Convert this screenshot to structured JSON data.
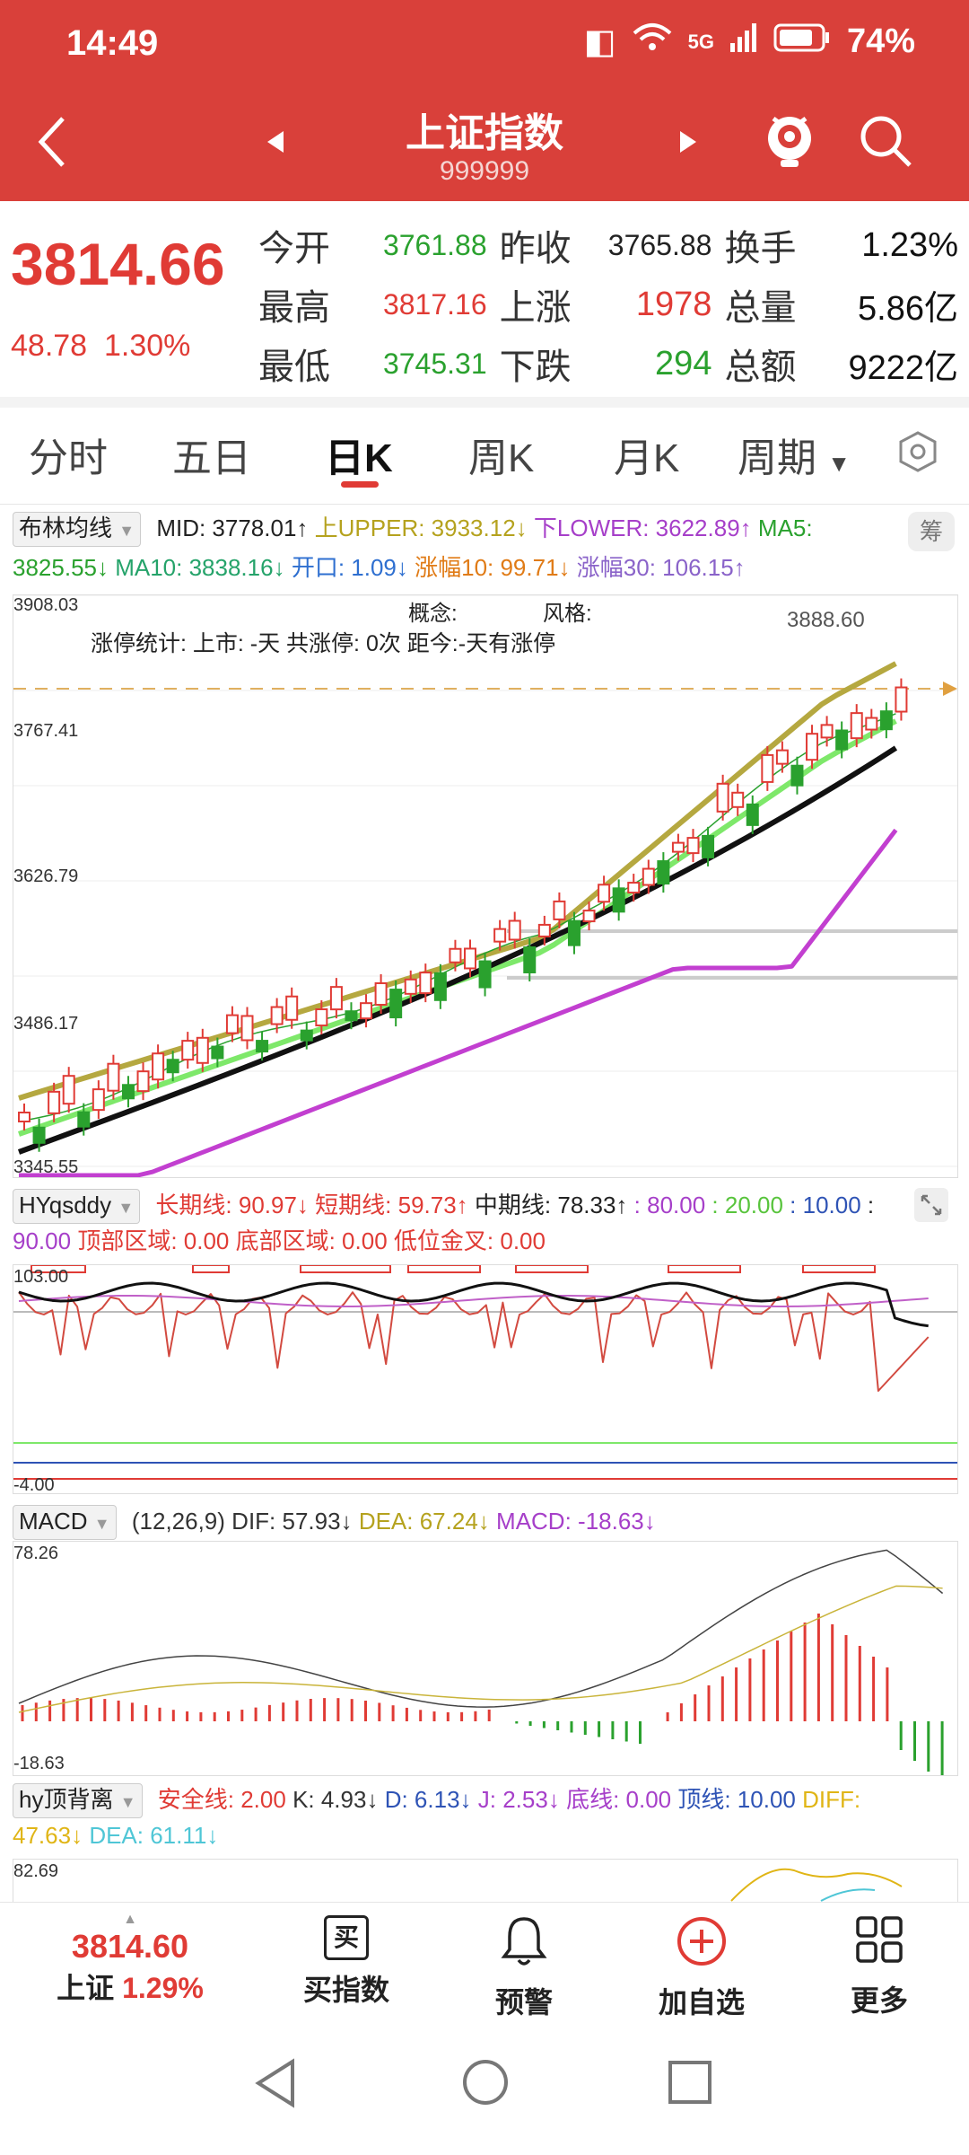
{
  "status_bar": {
    "time": "14:49",
    "network": "5G",
    "battery": "74%"
  },
  "header": {
    "title": "上证指数",
    "code": "999999"
  },
  "quote": {
    "price": "3814.66",
    "change": "48.78",
    "change_pct": "1.30%",
    "rows": [
      {
        "l1": "今开",
        "v1": "3761.88",
        "l2": "昨收",
        "v2": "3765.88",
        "l3": "换手",
        "v3": "1.23%"
      },
      {
        "l1": "最高",
        "v1": "3817.16",
        "l2": "上涨",
        "v2": "1978",
        "l3": "总量",
        "v3": "5.86亿"
      },
      {
        "l1": "最低",
        "v1": "3745.31",
        "l2": "下跌",
        "v2": "294",
        "l3": "总额",
        "v3": "9222亿"
      }
    ]
  },
  "tabs": [
    "分时",
    "五日",
    "日K",
    "周K",
    "月K",
    "周期"
  ],
  "active_tab": "日K",
  "boll": {
    "selector": "布林均线",
    "items": [
      "MID: 3778.01↑",
      "上UPPER: 3933.12↓",
      "下LOWER: 3622.89↑",
      "MA5:"
    ],
    "items2": [
      "3825.55↓",
      "MA10: 3838.16↓",
      "开口: 1.09↓",
      "涨幅10: 99.71↓",
      "涨幅30: 106.15↑"
    ],
    "axis": [
      "3908.03",
      "3767.41",
      "3626.79",
      "3486.17",
      "3345.55"
    ],
    "label_concept": "概念:",
    "label_style": "风格:",
    "limit_stat": "涨停统计: 上市: -天 共涨停: 0次 距今:-天有涨停",
    "high_label": "3888.60",
    "side_btn": "筹"
  },
  "hy": {
    "selector": "HYqsddy",
    "items": [
      "长期线: 90.97↓",
      "短期线: 59.73↑",
      "中期线: 78.33↑",
      ": 80.00",
      ": 20.00",
      ": 10.00",
      ":"
    ],
    "items2": [
      "90.00",
      "顶部区域: 0.00",
      "底部区域: 0.00",
      "低位金叉: 0.00"
    ],
    "axis": [
      "103.00",
      "-4.00"
    ]
  },
  "macd": {
    "selector": "MACD",
    "items": [
      "(12,26,9)",
      "DIF: 57.93↓",
      "DEA: 67.24↓",
      "MACD: -18.63↓"
    ],
    "axis": [
      "78.26",
      "-18.63"
    ]
  },
  "hyd": {
    "selector": "hy顶背离",
    "items": [
      "安全线: 2.00",
      "K: 4.93↓",
      "D: 6.13↓",
      "J: 2.53↓",
      "底线: 0.00",
      "顶线: 10.00",
      "DIFF:"
    ],
    "items2": [
      "47.63↓",
      "DEA: 61.11↓"
    ],
    "axis": [
      "82.69"
    ]
  },
  "bottom_bar": {
    "price": "3814.60",
    "name": "上证",
    "pct": "1.29%",
    "items": [
      "买指数",
      "预警",
      "加自选",
      "更多"
    ],
    "buy_icon_text": "买"
  },
  "colors": {
    "red": "#d9403a",
    "up": "#e03b35",
    "down": "#2aa12e"
  }
}
